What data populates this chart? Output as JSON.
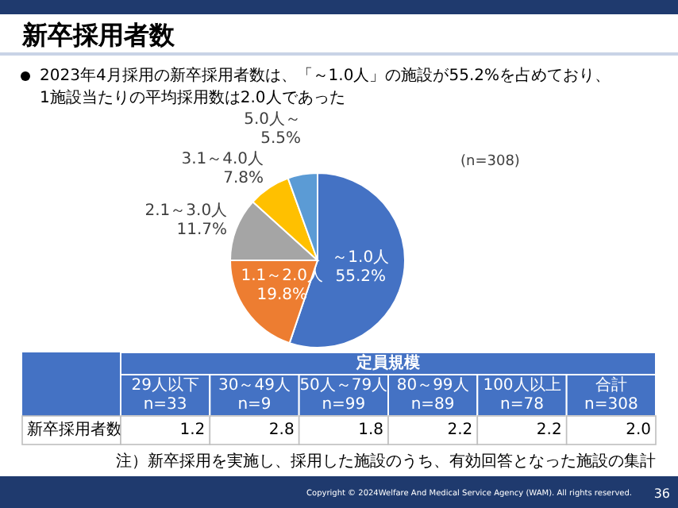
{
  "chart_data": [
    {
      "type": "pie",
      "title": "新卒採用者数",
      "subtitle": "2023年4月採用の新卒採用者数は、「～1.0人」の施設が55.2%を占めており、\n1施設当たりの平均採用数は2.0人であった",
      "categories": [
        "～1.0人",
        "1.1～2.0人",
        "2.1～3.0人",
        "3.1～4.0人",
        "5.0人～"
      ],
      "values": [
        55.2,
        19.8,
        11.7,
        7.8,
        5.5
      ],
      "value_labels": [
        "55.2%",
        "19.8%",
        "11.7%",
        "7.8%",
        "5.5%"
      ],
      "colors": [
        "#4472c4",
        "#ed7d31",
        "#a5a5a5",
        "#ffc000",
        "#5b9bd5"
      ],
      "annotations": [
        "(n=308)"
      ]
    },
    {
      "type": "other",
      "xlabel": "定員規模",
      "ylabel": "新卒採用者数",
      "categories": [
        "29人以下\nn=33",
        "30～49人\nn=9",
        "50人～79人\nn=99",
        "80～99人\nn=89",
        "100人以上\nn=78",
        "合計\nn=308"
      ],
      "values": [
        1.2,
        2.8,
        1.8,
        2.2,
        2.2,
        2.0
      ],
      "value_labels": [
        "1.2",
        "2.8",
        "1.8",
        "2.2",
        "2.2",
        "2.0"
      ],
      "annotations": [
        "注）新卒採用を実施し、採用した施設のうち、有効回答となった施設の集計",
        "Copyright © 2024Welfare And Medical Service Agency (WAM). All rights reserved.",
        "36"
      ]
    }
  ]
}
